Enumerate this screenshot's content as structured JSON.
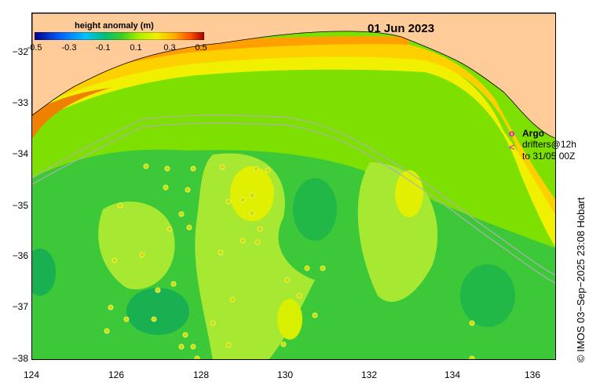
{
  "map": {
    "date_label": "01 Jun 2023",
    "colorbar": {
      "title": "height anomaly (m)",
      "ticks": [
        "-0.5",
        "-0.3",
        "-0.1",
        "0.1",
        "0.3",
        "0.5"
      ],
      "range": [
        -0.5,
        0.5
      ],
      "colors": [
        "#00008b",
        "#0040ff",
        "#00b0ff",
        "#00d0a0",
        "#00c040",
        "#30d030",
        "#a0f000",
        "#e8f000",
        "#ffc000",
        "#ff8000",
        "#e04000",
        "#a00000"
      ]
    },
    "lon_ticks": [
      "124",
      "126",
      "128",
      "130",
      "132",
      "134",
      "136"
    ],
    "lat_ticks": [
      "−32",
      "−33",
      "−34",
      "−35",
      "−36",
      "−37",
      "−38"
    ],
    "lon_range": [
      124,
      136.5
    ],
    "lat_range": [
      -38,
      -31.5
    ],
    "land_color": "#ffcc99",
    "legend": {
      "argo_symbol": "o",
      "argo_label": "Argo",
      "drifter_symbol": "<",
      "drifter_label_line1": "drifters@12h",
      "drifter_label_line2": "to 31/05 00Z"
    },
    "credit": "© IMOS 03−Sep−2025 23:08 Hobart"
  }
}
